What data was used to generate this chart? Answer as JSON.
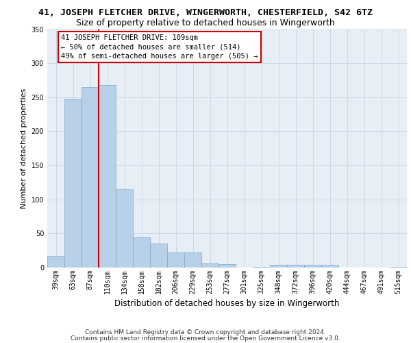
{
  "title_top": "41, JOSEPH FLETCHER DRIVE, WINGERWORTH, CHESTERFIELD, S42 6TZ",
  "title_sub": "Size of property relative to detached houses in Wingerworth",
  "xlabel": "Distribution of detached houses by size in Wingerworth",
  "ylabel": "Number of detached properties",
  "categories": [
    "39sqm",
    "63sqm",
    "87sqm",
    "110sqm",
    "134sqm",
    "158sqm",
    "182sqm",
    "206sqm",
    "229sqm",
    "253sqm",
    "277sqm",
    "301sqm",
    "325sqm",
    "348sqm",
    "372sqm",
    "396sqm",
    "420sqm",
    "444sqm",
    "467sqm",
    "491sqm",
    "515sqm"
  ],
  "values": [
    17,
    248,
    265,
    268,
    115,
    44,
    35,
    22,
    22,
    6,
    5,
    0,
    1,
    4,
    4,
    4,
    4,
    0,
    0,
    0,
    1
  ],
  "bar_color": "#b8d0e8",
  "bar_edge_color": "#7aaac8",
  "grid_color": "#ccd8e8",
  "bg_color": "#e8eef6",
  "vline_color": "#cc0000",
  "annotation_text": "41 JOSEPH FLETCHER DRIVE: 109sqm\n← 50% of detached houses are smaller (514)\n49% of semi-detached houses are larger (505) →",
  "annotation_box_color": "#cc0000",
  "footnote1": "Contains HM Land Registry data © Crown copyright and database right 2024.",
  "footnote2": "Contains public sector information licensed under the Open Government Licence v3.0.",
  "ylim": [
    0,
    350
  ],
  "yticks": [
    0,
    50,
    100,
    150,
    200,
    250,
    300,
    350
  ],
  "title_fontsize": 9.5,
  "subtitle_fontsize": 9,
  "xlabel_fontsize": 8.5,
  "ylabel_fontsize": 8,
  "tick_fontsize": 7,
  "footnote_fontsize": 6.5,
  "ann_fontsize": 7.5
}
